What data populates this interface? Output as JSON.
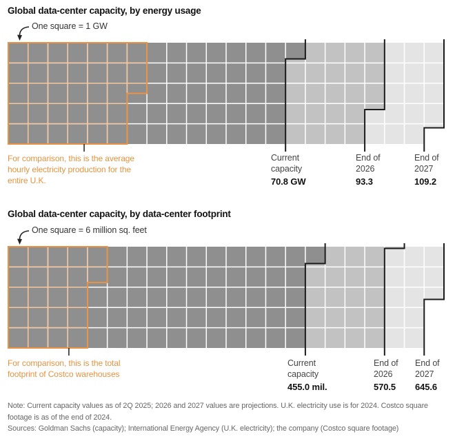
{
  "page": {
    "background": "#ffffff"
  },
  "colors": {
    "current": "#8f8f8f",
    "end_2026": "#c2c2c2",
    "end_2027": "#e4e4e4",
    "gridline": "#ffffff",
    "comparison": "#ea9345",
    "comparison_text": "#e8923e",
    "comparison_gridline": "#f3c69e",
    "stepline": "#1b1b1b",
    "empty": "#ffffff"
  },
  "chart_data": [
    {
      "type": "waffle",
      "title": "Global data-center capacity, by energy usage",
      "unit_label": "One square = 1 GW",
      "unit": "GW",
      "unit_per_square": 1,
      "rows": 5,
      "columns": 22,
      "series": [
        {
          "key": "current",
          "label_line1": "Current",
          "label_line2": "capacity",
          "value": 70.8,
          "value_label": "70.8 GW",
          "color_key": "current"
        },
        {
          "key": "end-2026",
          "label_line1": "End of",
          "label_line2": "2026",
          "value": 93.3,
          "value_label": "93.3",
          "color_key": "end_2026"
        },
        {
          "key": "end-2027",
          "label_line1": "End of",
          "label_line2": "2027",
          "value": 109.2,
          "value_label": "109.2",
          "color_key": "end_2027"
        }
      ],
      "comparison": {
        "text": "For comparison, this is the average hourly electricity production for the entire U.K.",
        "value_estimate": 32.5,
        "pointer_x_col": 3.83
      }
    },
    {
      "type": "waffle",
      "title": "Global data-center capacity, by data-center footprint",
      "unit_label": "One square = 6 million sq. feet",
      "unit": "million sq. feet",
      "unit_per_square": 6,
      "rows": 5,
      "columns": 22,
      "series": [
        {
          "key": "current",
          "label_line1": "Current",
          "label_line2": "capacity",
          "value": 455.0,
          "value_label": "455.0 mil.",
          "color_key": "current"
        },
        {
          "key": "end-2026",
          "label_line1": "End of",
          "label_line2": "2026",
          "value": 570.5,
          "value_label": "570.5",
          "color_key": "end_2026"
        },
        {
          "key": "end-2027",
          "label_line1": "End of",
          "label_line2": "2027",
          "value": 645.6,
          "value_label": "645.6",
          "color_key": "end_2027"
        }
      ],
      "comparison": {
        "text": "For comparison, this is the total footprint of Costco warehouses",
        "value_estimate": 130.6,
        "pointer_x_col": 3.06
      }
    }
  ],
  "note": "Note: Current capacity values as of 2Q 2025; 2026 and 2027 values are projections. U.K. electricity use is for 2024. Costco square footage is as of the end of 2024.",
  "sources": "Sources: Goldman Sachs (capacity); International Energy Agency (U.K. electricity); the company (Costco square footage)"
}
